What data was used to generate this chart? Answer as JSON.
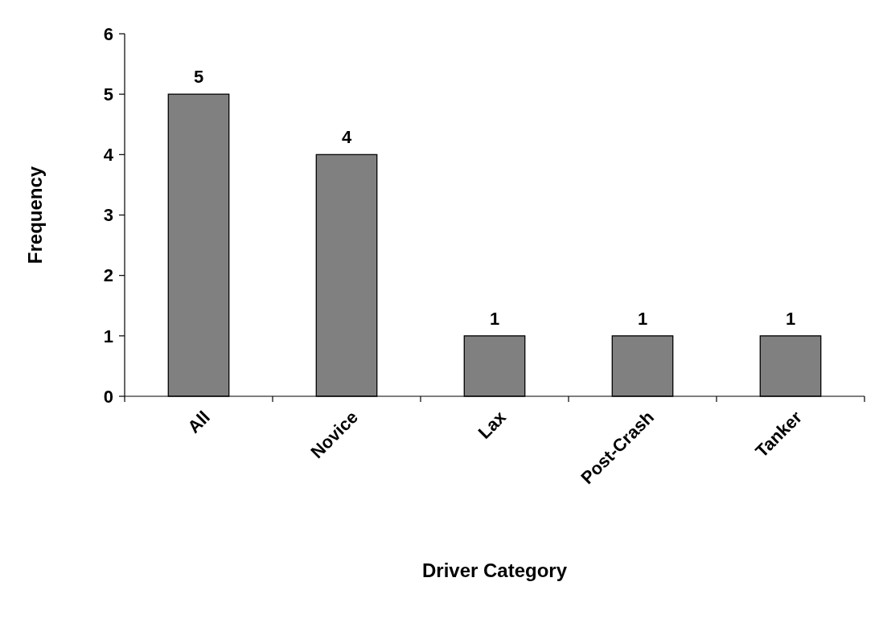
{
  "chart_data": {
    "type": "bar",
    "xlabel": "Driver Category",
    "ylabel": "Frequency",
    "categories": [
      "All",
      "Novice",
      "Lax",
      "Post-Crash",
      "Tanker"
    ],
    "values": [
      5,
      4,
      1,
      1,
      1
    ],
    "color": "#808080",
    "ylim": [
      0,
      6
    ],
    "yticks": [
      0,
      1,
      2,
      3,
      4,
      5,
      6
    ],
    "grid": false,
    "data_labels": true
  }
}
